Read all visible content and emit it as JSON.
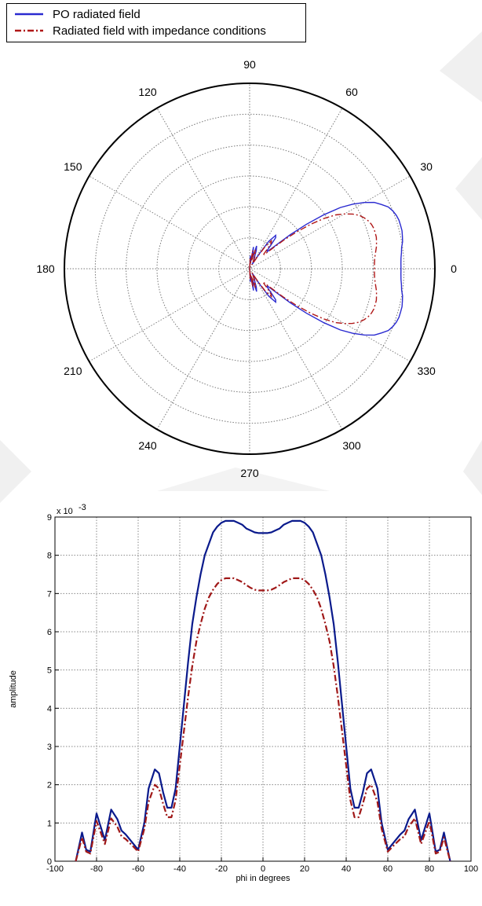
{
  "legend": {
    "entries": [
      {
        "label": "PO radiated field",
        "color": "#2a2ad0",
        "style": "solid"
      },
      {
        "label": "Radiated field with impedance conditions",
        "color": "#b01818",
        "style": "dashdot"
      }
    ]
  },
  "chart_data": [
    {
      "type": "polar-line",
      "angle_labels": [
        "0",
        "30",
        "60",
        "90",
        "120",
        "150",
        "180",
        "210",
        "240",
        "270",
        "300",
        "330"
      ],
      "angle_label_values": [
        0,
        30,
        60,
        90,
        120,
        150,
        180,
        210,
        240,
        270,
        300,
        330
      ],
      "rlim": [
        0,
        0.0105
      ],
      "grid": true,
      "series": [
        {
          "name": "PO radiated field",
          "color": "#2a2ad0",
          "style": "solid",
          "theta_deg": [
            -90,
            -87,
            -85,
            -83,
            -80,
            -78,
            -76,
            -73,
            -70,
            -68,
            -66,
            -63,
            -60,
            -57,
            -55,
            -52,
            -50,
            -48,
            -46,
            -44,
            -42,
            -40,
            -38,
            -36,
            -34,
            -32,
            -30,
            -28,
            -26,
            -24,
            -22,
            -20,
            -18,
            -16,
            -14,
            -12,
            -10,
            -8,
            -6,
            -4,
            -2,
            0,
            2,
            4,
            6,
            8,
            10,
            12,
            14,
            16,
            18,
            20,
            22,
            24,
            26,
            28,
            30,
            32,
            34,
            36,
            38,
            40,
            42,
            44,
            46,
            48,
            50,
            52,
            55,
            57,
            60,
            63,
            66,
            68,
            70,
            73,
            76,
            78,
            80,
            83,
            85,
            87,
            90
          ],
          "r": [
            0.0,
            0.75,
            0.3,
            0.25,
            1.25,
            0.9,
            0.55,
            1.35,
            1.1,
            0.8,
            0.7,
            0.5,
            0.3,
            1.0,
            1.9,
            2.4,
            2.3,
            1.8,
            1.4,
            1.4,
            1.9,
            3.0,
            4.1,
            5.2,
            6.2,
            6.9,
            7.5,
            8.0,
            8.3,
            8.6,
            8.75,
            8.85,
            8.9,
            8.9,
            8.9,
            8.85,
            8.8,
            8.7,
            8.65,
            8.6,
            8.58,
            8.58,
            8.58,
            8.6,
            8.65,
            8.7,
            8.8,
            8.85,
            8.9,
            8.9,
            8.9,
            8.85,
            8.75,
            8.6,
            8.3,
            8.0,
            7.5,
            6.9,
            6.2,
            5.2,
            4.1,
            3.0,
            1.9,
            1.4,
            1.4,
            1.8,
            2.3,
            2.4,
            1.9,
            1.0,
            0.3,
            0.5,
            0.7,
            0.8,
            1.1,
            1.35,
            0.55,
            0.9,
            1.25,
            0.25,
            0.3,
            0.75,
            0.0
          ],
          "r_scale": 0.001
        },
        {
          "name": "Radiated field with impedance conditions",
          "color": "#b01818",
          "style": "dashdot",
          "theta_deg": [
            -90,
            -87,
            -85,
            -83,
            -80,
            -78,
            -76,
            -73,
            -70,
            -68,
            -66,
            -63,
            -60,
            -57,
            -55,
            -52,
            -50,
            -48,
            -46,
            -44,
            -42,
            -40,
            -38,
            -36,
            -34,
            -32,
            -30,
            -28,
            -26,
            -24,
            -22,
            -20,
            -18,
            -16,
            -14,
            -12,
            -10,
            -8,
            -6,
            -4,
            -2,
            0,
            2,
            4,
            6,
            8,
            10,
            12,
            14,
            16,
            18,
            20,
            22,
            24,
            26,
            28,
            30,
            32,
            34,
            36,
            38,
            40,
            42,
            44,
            46,
            48,
            50,
            52,
            55,
            57,
            60,
            63,
            66,
            68,
            70,
            73,
            76,
            78,
            80,
            83,
            85,
            87,
            90
          ],
          "r": [
            0.0,
            0.62,
            0.25,
            0.2,
            1.05,
            0.75,
            0.45,
            1.12,
            0.9,
            0.65,
            0.58,
            0.42,
            0.25,
            0.85,
            1.55,
            2.0,
            1.9,
            1.5,
            1.15,
            1.15,
            1.6,
            2.5,
            3.4,
            4.3,
            5.1,
            5.75,
            6.2,
            6.6,
            6.9,
            7.1,
            7.25,
            7.35,
            7.4,
            7.4,
            7.4,
            7.35,
            7.3,
            7.22,
            7.15,
            7.1,
            7.08,
            7.08,
            7.08,
            7.1,
            7.15,
            7.22,
            7.3,
            7.35,
            7.4,
            7.4,
            7.4,
            7.35,
            7.25,
            7.1,
            6.9,
            6.6,
            6.2,
            5.75,
            5.1,
            4.3,
            3.4,
            2.5,
            1.6,
            1.15,
            1.15,
            1.5,
            1.9,
            2.0,
            1.55,
            0.85,
            0.25,
            0.42,
            0.58,
            0.65,
            0.9,
            1.12,
            0.45,
            0.75,
            1.05,
            0.2,
            0.25,
            0.62,
            0.0
          ],
          "r_scale": 0.001
        }
      ]
    },
    {
      "type": "line",
      "xlabel": "phi in degrees",
      "ylabel": "amplitude",
      "xlim": [
        -100,
        100
      ],
      "ylim": [
        0,
        9
      ],
      "y_multiplier_label": "x 10",
      "y_multiplier_exponent": "-3",
      "x_ticks": [
        -100,
        -80,
        -60,
        -40,
        -20,
        0,
        20,
        40,
        60,
        80,
        100
      ],
      "y_ticks": [
        0,
        1,
        2,
        3,
        4,
        5,
        6,
        7,
        8,
        9
      ],
      "grid": true,
      "series": [
        {
          "name": "PO radiated field",
          "color": "#0a1a8c",
          "style": "solid",
          "x": [
            -90,
            -87,
            -85,
            -83,
            -80,
            -78,
            -76,
            -73,
            -70,
            -68,
            -66,
            -63,
            -60,
            -57,
            -55,
            -52,
            -50,
            -48,
            -46,
            -44,
            -42,
            -40,
            -38,
            -36,
            -34,
            -32,
            -30,
            -28,
            -26,
            -24,
            -22,
            -20,
            -18,
            -16,
            -14,
            -12,
            -10,
            -8,
            -6,
            -4,
            -2,
            0,
            2,
            4,
            6,
            8,
            10,
            12,
            14,
            16,
            18,
            20,
            22,
            24,
            26,
            28,
            30,
            32,
            34,
            36,
            38,
            40,
            42,
            44,
            46,
            48,
            50,
            52,
            55,
            57,
            60,
            63,
            66,
            68,
            70,
            73,
            76,
            78,
            80,
            83,
            85,
            87,
            90
          ],
          "y": [
            0.0,
            0.75,
            0.3,
            0.25,
            1.25,
            0.9,
            0.55,
            1.35,
            1.1,
            0.8,
            0.7,
            0.5,
            0.3,
            1.0,
            1.9,
            2.4,
            2.3,
            1.8,
            1.4,
            1.4,
            1.9,
            3.0,
            4.1,
            5.2,
            6.2,
            6.9,
            7.5,
            8.0,
            8.3,
            8.6,
            8.75,
            8.85,
            8.9,
            8.9,
            8.9,
            8.85,
            8.8,
            8.7,
            8.65,
            8.6,
            8.58,
            8.58,
            8.58,
            8.6,
            8.65,
            8.7,
            8.8,
            8.85,
            8.9,
            8.9,
            8.9,
            8.85,
            8.75,
            8.6,
            8.3,
            8.0,
            7.5,
            6.9,
            6.2,
            5.2,
            4.1,
            3.0,
            1.9,
            1.4,
            1.4,
            1.8,
            2.3,
            2.4,
            1.9,
            1.0,
            0.3,
            0.5,
            0.7,
            0.8,
            1.1,
            1.35,
            0.55,
            0.9,
            1.25,
            0.25,
            0.3,
            0.75,
            0.0
          ]
        },
        {
          "name": "Radiated field with impedance conditions",
          "color": "#a01818",
          "style": "dashdot",
          "x": [
            -90,
            -87,
            -85,
            -83,
            -80,
            -78,
            -76,
            -73,
            -70,
            -68,
            -66,
            -63,
            -60,
            -57,
            -55,
            -52,
            -50,
            -48,
            -46,
            -44,
            -42,
            -40,
            -38,
            -36,
            -34,
            -32,
            -30,
            -28,
            -26,
            -24,
            -22,
            -20,
            -18,
            -16,
            -14,
            -12,
            -10,
            -8,
            -6,
            -4,
            -2,
            0,
            2,
            4,
            6,
            8,
            10,
            12,
            14,
            16,
            18,
            20,
            22,
            24,
            26,
            28,
            30,
            32,
            34,
            36,
            38,
            40,
            42,
            44,
            46,
            48,
            50,
            52,
            55,
            57,
            60,
            63,
            66,
            68,
            70,
            73,
            76,
            78,
            80,
            83,
            85,
            87,
            90
          ],
          "y": [
            0.0,
            0.62,
            0.25,
            0.2,
            1.05,
            0.75,
            0.45,
            1.12,
            0.9,
            0.65,
            0.58,
            0.42,
            0.25,
            0.85,
            1.55,
            2.0,
            1.9,
            1.5,
            1.15,
            1.15,
            1.6,
            2.5,
            3.4,
            4.3,
            5.1,
            5.75,
            6.2,
            6.6,
            6.9,
            7.1,
            7.25,
            7.35,
            7.4,
            7.4,
            7.4,
            7.35,
            7.3,
            7.22,
            7.15,
            7.1,
            7.08,
            7.08,
            7.08,
            7.1,
            7.15,
            7.22,
            7.3,
            7.35,
            7.4,
            7.4,
            7.4,
            7.35,
            7.25,
            7.1,
            6.9,
            6.6,
            6.2,
            5.75,
            5.1,
            4.3,
            3.4,
            2.5,
            1.6,
            1.15,
            1.15,
            1.5,
            1.9,
            2.0,
            1.55,
            0.85,
            0.25,
            0.42,
            0.58,
            0.65,
            0.9,
            1.12,
            0.45,
            0.75,
            1.05,
            0.2,
            0.25,
            0.62,
            0.0
          ]
        }
      ]
    }
  ]
}
